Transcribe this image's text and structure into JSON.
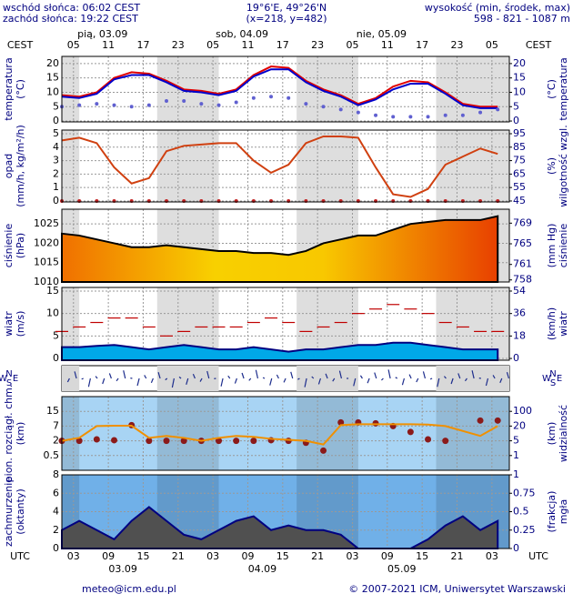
{
  "header": {
    "sunrise": "wschód słońca: 06:02 CEST",
    "sunset": "zachód słońca: 19:22 CEST",
    "coords": "19°6'E, 49°26'N",
    "grid": "(x=218, y=482)",
    "height_title": "wysokość (min, środek, max)",
    "height": "598 - 821 - 1087 m"
  },
  "footer": {
    "email": "meteo@icm.edu.pl",
    "copyright": "© 2007-2021 ICM, Uniwersytet Warszawski"
  },
  "chart_data": {
    "type": "meteogram",
    "top_zone": "CEST",
    "bottom_zone": "UTC",
    "top_days": [
      "pią, 03.09",
      "sob, 04.09",
      "nie, 05.09"
    ],
    "bottom_days": [
      "03.09",
      "04.09",
      "05.09"
    ],
    "compass": [
      "W",
      "N",
      "S",
      "E"
    ],
    "x": [
      1,
      4,
      7,
      10,
      13,
      16,
      19,
      22,
      25,
      28,
      31,
      34,
      37,
      40,
      43,
      46,
      49,
      52,
      55,
      58,
      61,
      64,
      67,
      70,
      73,
      76
    ],
    "xlim": [
      1,
      78
    ],
    "xticks": [
      {
        "value": 3,
        "label": "05"
      },
      {
        "value": 9,
        "label": "11"
      },
      {
        "value": 15,
        "label": "17"
      },
      {
        "value": 21,
        "label": "23"
      },
      {
        "value": 27,
        "label": "05"
      },
      {
        "value": 33,
        "label": "11"
      },
      {
        "value": 39,
        "label": "17"
      },
      {
        "value": 45,
        "label": "23"
      },
      {
        "value": 51,
        "label": "05"
      },
      {
        "value": 57,
        "label": "11"
      },
      {
        "value": 63,
        "label": "17"
      },
      {
        "value": 69,
        "label": "23"
      },
      {
        "value": 75,
        "label": "05"
      }
    ],
    "x2ticks": [
      {
        "value": 3,
        "label": "03"
      },
      {
        "value": 9,
        "label": "09"
      },
      {
        "value": 15,
        "label": "15"
      },
      {
        "value": 21,
        "label": "21"
      },
      {
        "value": 27,
        "label": "03"
      },
      {
        "value": 33,
        "label": "09"
      },
      {
        "value": 39,
        "label": "15"
      },
      {
        "value": 45,
        "label": "21"
      },
      {
        "value": 51,
        "label": "03"
      },
      {
        "value": 57,
        "label": "09"
      },
      {
        "value": 63,
        "label": "15"
      },
      {
        "value": 69,
        "label": "21"
      },
      {
        "value": 75,
        "label": "03"
      }
    ],
    "panels": [
      {
        "ylabel": [
          "temperatura",
          "(°C)"
        ],
        "y2label": [
          "(°C)",
          "temperatura"
        ],
        "background": "#ffffff",
        "ylim": [
          -0.3,
          22.5
        ],
        "yticks": [
          0,
          5,
          10,
          15,
          20
        ],
        "y2lim": [
          -0.3,
          22.5
        ],
        "y2ticks": [
          0,
          5,
          10,
          15,
          20
        ],
        "series": [
          {
            "type": "line",
            "color": "#e00000",
            "values": [
              9,
              8.5,
              10,
              15,
              17,
              16.5,
              14,
              11,
              10.5,
              9.5,
              11,
              16,
              19,
              18.5,
              14,
              11,
              9,
              6,
              8,
              12,
              14,
              13.5,
              10,
              6,
              5,
              5
            ]
          },
          {
            "type": "line",
            "color": "#0000cc",
            "values": [
              8.5,
              8,
              9.5,
              14.5,
              16,
              16,
              13.5,
              10.5,
              10,
              9,
              10.5,
              15.5,
              18,
              18,
              13.5,
              10.5,
              8.5,
              5.5,
              7.5,
              11,
              13,
              13,
              9.5,
              5.5,
              4.5,
              4.5
            ]
          },
          {
            "type": "dots",
            "color": "#6060d0",
            "values": [
              5,
              5.5,
              6,
              5.5,
              5,
              5.5,
              7,
              7,
              6,
              5.5,
              6.5,
              8,
              8.5,
              8,
              6,
              5,
              4,
              3,
              2,
              1.5,
              1.5,
              1.5,
              2,
              2,
              3,
              4
            ]
          }
        ]
      },
      {
        "ylabel": [
          "opad",
          "(mm/h, kg/m²/h)"
        ],
        "y2label": [
          "(%)",
          "wilgotność wzgl."
        ],
        "background": "#ffffff",
        "ylim": [
          -0.07,
          5.27
        ],
        "yticks": [
          0,
          1,
          2,
          3,
          4,
          5
        ],
        "y2lim": [
          44.3,
          97.7
        ],
        "y2ticks": [
          45,
          55,
          65,
          75,
          85,
          95
        ],
        "series": [
          {
            "type": "dots",
            "color": "#c02020",
            "values": [
              0,
              0,
              0,
              0,
              0,
              0,
              0,
              0,
              0,
              0,
              0,
              0,
              0,
              0,
              0,
              0,
              0,
              0,
              0,
              0,
              0,
              0,
              0,
              0,
              0,
              0
            ]
          },
          {
            "type": "line",
            "axis": "y2",
            "color": "#d04010",
            "values": [
              90,
              92,
              88,
              70,
              58,
              62,
              82,
              86,
              87,
              88,
              88,
              75,
              66,
              72,
              88,
              93,
              93,
              92,
              70,
              50,
              48,
              54,
              72,
              78,
              84,
              80
            ]
          }
        ]
      },
      {
        "ylabel": [
          "ciśnienie",
          "(hPa)"
        ],
        "y2label": [
          "(mm Hg)",
          "ciśnienie"
        ],
        "background": "#ffffff",
        "ylim": [
          1010,
          1028.8
        ],
        "yticks": [
          1010,
          1015,
          1020,
          1025
        ],
        "y2lim": [
          757.6,
          771.7
        ],
        "y2ticks": [
          758,
          761,
          765,
          769
        ],
        "series": [
          {
            "type": "area",
            "color": "#f2a400",
            "values": [
              1022.5,
              1022,
              1021,
              1020,
              1019,
              1019,
              1019.5,
              1019,
              1018.5,
              1018,
              1018,
              1017.5,
              1017.5,
              1017,
              1018,
              1020,
              1021,
              1022,
              1022,
              1023.5,
              1025,
              1025.5,
              1026,
              1026,
              1026,
              1027
            ]
          }
        ]
      },
      {
        "ylabel": [
          "wiatr",
          "(m/s)"
        ],
        "y2label": [
          "(km/h)",
          "wiatr"
        ],
        "background": "#ffffff",
        "ylim": [
          -0.4,
          15.8
        ],
        "yticks": [
          0,
          5,
          10,
          15
        ],
        "y2lim": [
          -1.4,
          56.9
        ],
        "y2ticks": [
          0,
          18,
          36,
          54
        ],
        "series": [
          {
            "type": "area",
            "color": "#00a8e8",
            "values": [
              2.5,
              2.5,
              2.8,
              3,
              2.5,
              2,
              2.5,
              3,
              2.5,
              2,
              2,
              2.5,
              2,
              1.5,
              2,
              2,
              2.5,
              3,
              3,
              3.5,
              3.5,
              3,
              2.5,
              2,
              2,
              2
            ]
          },
          {
            "type": "dashes",
            "color": "#c00000",
            "values": [
              6,
              7,
              8,
              9,
              9,
              7,
              5,
              6,
              7,
              7,
              7,
              8,
              9,
              8,
              6,
              7,
              8,
              10,
              11,
              12,
              11,
              10,
              8,
              7,
              6,
              6
            ]
          }
        ]
      },
      {
        "ylabel": [
          "pion. rozciągł. chm.",
          "(km)"
        ],
        "y2label": [
          "(km)",
          "widzialność"
        ],
        "background": "#a8d4f4",
        "scale": "tick-steps",
        "ylim": [
          0,
          20
        ],
        "yticks": [
          0.5,
          2,
          7,
          15
        ],
        "y2lim": [
          0,
          200
        ],
        "y2ticks": [
          1,
          5,
          20,
          100
        ],
        "series": [
          {
            "type": "dots",
            "color": "#8b1a1a",
            "values": [
              2,
              2,
              2.5,
              2.2,
              7.5,
              2,
              2,
              2,
              2,
              2,
              2,
              2,
              2.2,
              2,
              1.8,
              1,
              9,
              9,
              8.5,
              7,
              5,
              2.5,
              2,
              null,
              10,
              10
            ]
          },
          {
            "type": "line",
            "axis": "y2",
            "color": "#f09000",
            "values": [
              5,
              8,
              20,
              22,
              22,
              8,
              10,
              8,
              5,
              8,
              10,
              9,
              7,
              6,
              5,
              4,
              25,
              30,
              30,
              30,
              30,
              28,
              20,
              15,
              10,
              20
            ]
          }
        ]
      },
      {
        "ylabel": [
          "zachmurzenie",
          "(oktanty)"
        ],
        "y2label": [
          "(frakcja)",
          "mgła"
        ],
        "background": "#70b0e8",
        "ylim": [
          0,
          8
        ],
        "yticks": [
          0,
          2,
          4,
          6,
          8
        ],
        "y2lim": [
          0,
          1
        ],
        "y2ticks": [
          0,
          0.25,
          0.5,
          0.75,
          1
        ],
        "series": [
          {
            "type": "area",
            "color": "#505050",
            "values": [
              2,
              3,
              2,
              1,
              3,
              4.5,
              3,
              1.5,
              1,
              2,
              3,
              3.5,
              2,
              2.5,
              2,
              2,
              1.5,
              0,
              0,
              0,
              0,
              1,
              2.5,
              3.5,
              2,
              3
            ]
          }
        ]
      }
    ]
  }
}
